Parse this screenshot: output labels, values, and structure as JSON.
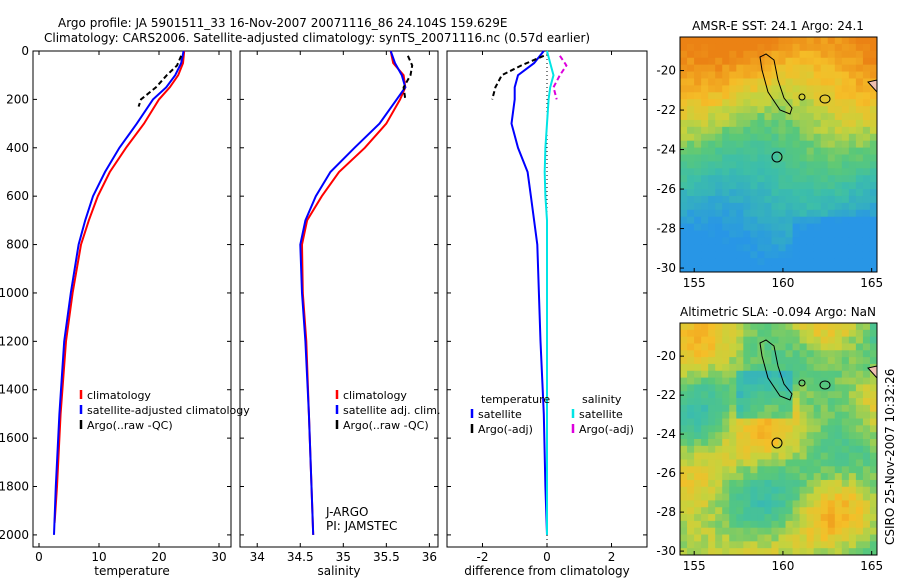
{
  "header": {
    "line1": "Argo profile: JA 5901511_33 16-Nov-2007 20071116_86 24.104S 159.629E",
    "line2": "Climatology: CARS2006. Satellite-adjusted climatology: synTS_20071116.nc (0.57d earlier)"
  },
  "side_label": "CSIRO 25-Nov-2007 10:32:26",
  "colors": {
    "climatology": "#ff0000",
    "satellite": "#0000ff",
    "argo": "#000000",
    "satellite_salinity": "#00e5e5",
    "argo_salinity": "#dd00dd"
  },
  "chart_data": [
    {
      "name": "temperature",
      "type": "line",
      "xlabel": "temperature",
      "xlim": [
        -1,
        32
      ],
      "ylim": [
        2050,
        0
      ],
      "xticks": [
        0,
        10,
        20,
        30
      ],
      "yticks": [
        0,
        200,
        400,
        600,
        800,
        1000,
        1200,
        1400,
        1600,
        1800,
        2000
      ],
      "legend": [
        "climatology",
        "satellite-adjusted climatology",
        "Argo(..raw -QC)"
      ],
      "series": [
        {
          "name": "climatology",
          "color": "red",
          "x": [
            24.2,
            24.0,
            23.2,
            21.8,
            20.0,
            17.5,
            14.5,
            11.8,
            9.8,
            8.3,
            7.0,
            5.6,
            4.5,
            3.6,
            3.0,
            2.6
          ],
          "y": [
            0,
            50,
            100,
            150,
            200,
            300,
            400,
            500,
            600,
            700,
            800,
            1000,
            1200,
            1500,
            1800,
            1950
          ]
        },
        {
          "name": "satellite-adjusted climatology",
          "color": "blue",
          "x": [
            24.1,
            23.7,
            22.7,
            21.2,
            19.0,
            16.3,
            13.4,
            11.0,
            9.0,
            7.7,
            6.6,
            5.3,
            4.2,
            3.4,
            2.8,
            2.5
          ],
          "y": [
            0,
            50,
            100,
            150,
            200,
            300,
            400,
            500,
            600,
            700,
            800,
            1000,
            1200,
            1500,
            1800,
            2000
          ]
        },
        {
          "name": "Argo(..raw -QC)",
          "color": "black",
          "dashed": true,
          "x": [
            23.7,
            23.0,
            21.3,
            19.5,
            17.0,
            16.6
          ],
          "y": [
            20,
            60,
            100,
            150,
            200,
            230
          ]
        }
      ]
    },
    {
      "name": "salinity",
      "type": "line",
      "xlabel": "salinity",
      "xlim": [
        33.8,
        36.1
      ],
      "ylim": [
        2050,
        0
      ],
      "xticks": [
        34,
        34.5,
        35,
        35.5,
        36
      ],
      "legend": [
        "climatology",
        "satellite adj. clim.",
        "Argo(..raw -QC)"
      ],
      "annotation": [
        "J-ARGO",
        "PI: JAMSTEC"
      ],
      "series": [
        {
          "name": "climatology",
          "color": "red",
          "x": [
            35.55,
            35.58,
            35.7,
            35.72,
            35.66,
            35.5,
            35.25,
            34.95,
            34.75,
            34.58,
            34.52,
            34.53,
            34.57,
            34.6,
            34.63,
            34.65
          ],
          "y": [
            0,
            50,
            100,
            150,
            200,
            300,
            400,
            500,
            600,
            700,
            800,
            1000,
            1200,
            1500,
            1800,
            2000
          ]
        },
        {
          "name": "satellite adj. clim.",
          "color": "blue",
          "x": [
            35.55,
            35.6,
            35.68,
            35.72,
            35.62,
            35.42,
            35.13,
            34.85,
            34.68,
            34.56,
            34.5,
            34.52,
            34.56,
            34.6,
            34.63,
            34.65
          ],
          "y": [
            0,
            50,
            100,
            150,
            200,
            300,
            400,
            500,
            600,
            700,
            800,
            1000,
            1200,
            1500,
            1800,
            2000
          ]
        },
        {
          "name": "Argo(..raw -QC)",
          "color": "black",
          "dashed": true,
          "x": [
            35.75,
            35.8,
            35.78,
            35.7,
            35.72
          ],
          "y": [
            20,
            60,
            100,
            150,
            200
          ]
        }
      ]
    },
    {
      "name": "difference",
      "type": "line",
      "xlabel": "difference from climatology",
      "xlim": [
        -3.1,
        3.1
      ],
      "ylim": [
        2050,
        0
      ],
      "xticks": [
        -2,
        0,
        2
      ],
      "legend_temperature": [
        "temperature",
        "satellite",
        "Argo(-adj)"
      ],
      "legend_salinity": [
        "salinity",
        "satellite",
        "Argo(-adj)"
      ],
      "series": [
        {
          "name": "temperature satellite",
          "color": "blue",
          "x": [
            -0.1,
            -0.4,
            -0.9,
            -1.0,
            -1.0,
            -1.1,
            -0.9,
            -0.6,
            -0.5,
            -0.4,
            -0.3,
            -0.25,
            -0.2,
            -0.1,
            -0.05,
            0.0
          ],
          "y": [
            0,
            50,
            100,
            150,
            200,
            300,
            400,
            500,
            600,
            700,
            800,
            1000,
            1200,
            1500,
            1800,
            2000
          ]
        },
        {
          "name": "temperature Argo(-adj)",
          "color": "black",
          "dashed": true,
          "x": [
            -0.1,
            -0.8,
            -1.4,
            -1.6,
            -1.7
          ],
          "y": [
            20,
            60,
            100,
            150,
            200
          ]
        },
        {
          "name": "salinity satellite",
          "color": "cyan",
          "x": [
            0.0,
            0.1,
            0.2,
            0.1,
            0.05,
            0.0,
            -0.05,
            -0.07,
            -0.05,
            0.0,
            0.0,
            0.0,
            0.0,
            0.0,
            0.0,
            0.0
          ],
          "y": [
            0,
            50,
            100,
            150,
            200,
            300,
            400,
            500,
            600,
            700,
            800,
            1000,
            1200,
            1500,
            1800,
            2000
          ]
        },
        {
          "name": "salinity Argo(-adj)",
          "color": "magenta",
          "dashed": true,
          "x": [
            0.4,
            0.6,
            0.4,
            0.2,
            0.3
          ],
          "y": [
            20,
            60,
            100,
            150,
            200
          ]
        }
      ]
    }
  ],
  "maps": [
    {
      "title": "AMSR-E SST: 24.1 Argo: 24.1",
      "xticks": [
        155,
        160,
        165
      ],
      "yticks": [
        -20,
        -22,
        -24,
        -26,
        -28,
        -30
      ],
      "kind": "sst"
    },
    {
      "title": "Altimetric SLA: -0.094 Argo: NaN",
      "xticks": [
        155,
        160,
        165
      ],
      "yticks": [
        -20,
        -22,
        -24,
        -26,
        -28,
        -30
      ],
      "kind": "sla"
    }
  ]
}
